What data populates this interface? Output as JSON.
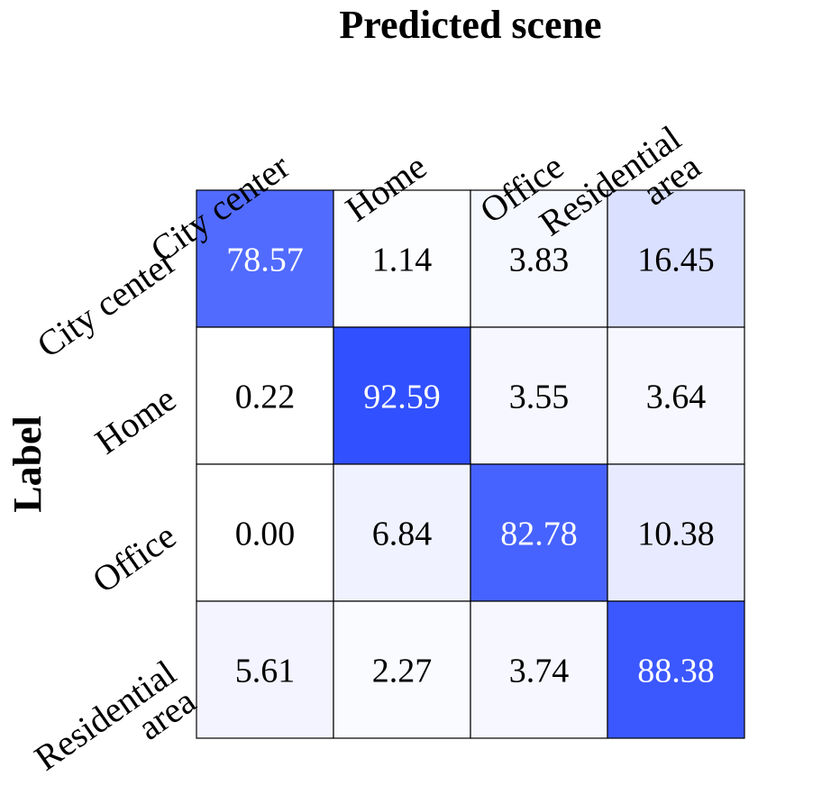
{
  "chart_data": {
    "type": "heatmap",
    "title": "Predicted scene",
    "xlabel": "Predicted scene",
    "ylabel": "Label",
    "x_categories": [
      [
        "City center"
      ],
      [
        "Home"
      ],
      [
        "Office"
      ],
      [
        "Residential",
        "area"
      ]
    ],
    "y_categories": [
      [
        "City center"
      ],
      [
        "Home"
      ],
      [
        "Office"
      ],
      [
        "Residential",
        "area"
      ]
    ],
    "values": [
      [
        78.57,
        1.14,
        3.83,
        16.45
      ],
      [
        0.22,
        92.59,
        3.55,
        3.64
      ],
      [
        0.0,
        6.84,
        82.78,
        10.38
      ],
      [
        5.61,
        2.27,
        3.74,
        88.38
      ]
    ],
    "value_range": [
      0,
      100
    ],
    "colors": {
      "high": "#2142ff",
      "low": "#ffffff",
      "grid": "#000000",
      "text_dark": "#000000",
      "text_light": "#ffffff"
    }
  }
}
